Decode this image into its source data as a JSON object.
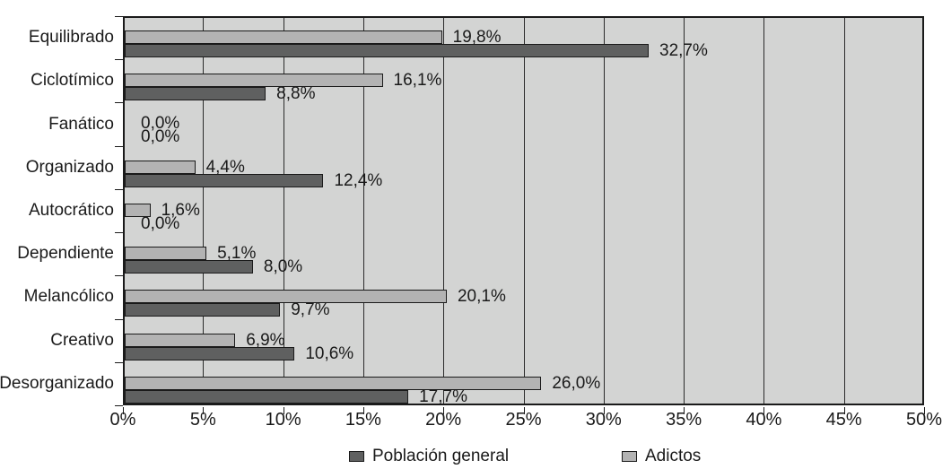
{
  "chart_data": {
    "type": "bar",
    "orientation": "horizontal",
    "title": "",
    "xlabel": "",
    "ylabel": "",
    "categories": [
      "Equilibrado",
      "Ciclotímico",
      "Fanático",
      "Organizado",
      "Autocrático",
      "Dependiente",
      "Melancólico",
      "Creativo",
      "Desorganizado"
    ],
    "series": [
      {
        "name": "Población general",
        "color": "#5f6060",
        "values": [
          32.7,
          8.8,
          0.0,
          12.4,
          0.0,
          8.0,
          9.7,
          10.6,
          17.7
        ],
        "labels": [
          "32,7%",
          "8,8%",
          "0,0%",
          "12,4%",
          "0,0%",
          "8,0%",
          "9,7%",
          "10,6%",
          "17,7%"
        ]
      },
      {
        "name": "Adictos",
        "color": "#b3b3b3",
        "values": [
          19.8,
          16.1,
          0.0,
          4.4,
          1.6,
          5.1,
          20.1,
          6.9,
          26.0
        ],
        "labels": [
          "19,8%",
          "16,1%",
          "0,0%",
          "4,4%",
          "1,6%",
          "5,1%",
          "20,1%",
          "6,9%",
          "26,0%"
        ]
      }
    ],
    "bar_order_top_to_bottom_within_group": [
      "Adictos",
      "Población general"
    ],
    "x_axis": {
      "min": 0,
      "max": 50,
      "tick_step": 5,
      "tick_labels": [
        "0%",
        "5%",
        "10%",
        "15%",
        "20%",
        "25%",
        "30%",
        "35%",
        "40%",
        "45%",
        "50%"
      ]
    },
    "grid": true,
    "plot_background": "#d3d4d3",
    "axis_color": "#1a1a1a",
    "legend": {
      "position": "bottom",
      "items": [
        {
          "label": "Población general",
          "color": "#5f6060"
        },
        {
          "label": "Adictos",
          "color": "#b3b3b3"
        }
      ]
    }
  }
}
